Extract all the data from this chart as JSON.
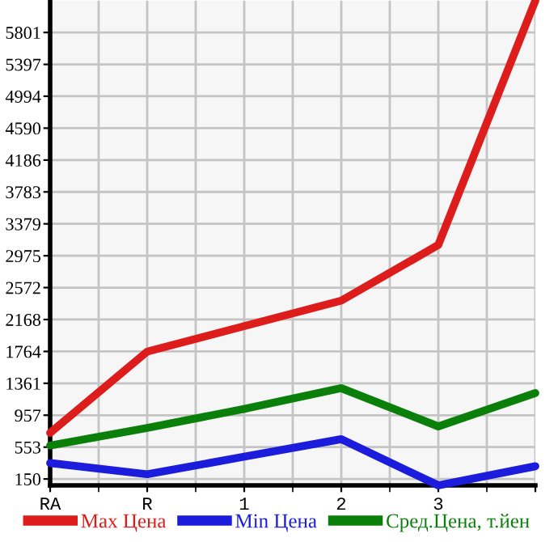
{
  "chart_data": {
    "type": "line",
    "categories": [
      "RA",
      "R",
      "1",
      "2",
      "3",
      null
    ],
    "series": [
      {
        "name": "Max Цена",
        "color": "#dd1c1c",
        "values": [
          734,
          1762,
          2085,
          2407,
          3112,
          6205
        ]
      },
      {
        "name": "Min Цена",
        "color": "#1c1cdd",
        "values": [
          352,
          210,
          432,
          654,
          69,
          311
        ]
      },
      {
        "name": "Сред.Цена, т.йен",
        "color": "#0a800a",
        "values": [
          573,
          795,
          1037,
          1299,
          815,
          1238
        ]
      }
    ],
    "ylim": [
      69,
      6205
    ],
    "yticks": [
      150,
      553,
      957,
      1361,
      1764,
      2168,
      2572,
      2975,
      3379,
      3783,
      4186,
      4590,
      4994,
      5397,
      5801
    ],
    "grid": true,
    "legend": "bottom",
    "marker": "none",
    "line_style": "solid"
  }
}
